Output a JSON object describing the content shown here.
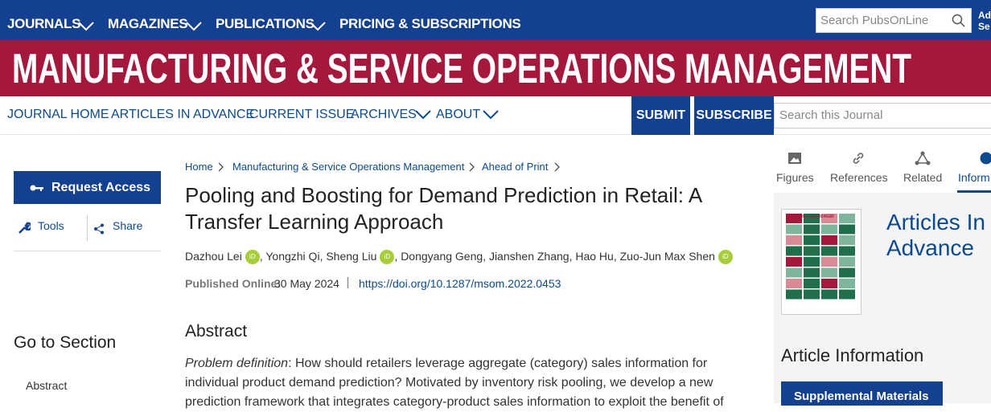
{
  "top_nav": {
    "items": [
      "JOURNALS",
      "MAGAZINES",
      "PUBLICATIONS",
      "PRICING & SUBSCRIPTIONS"
    ],
    "search_placeholder": "Search PubsOnLine",
    "corner_text": [
      "Ad",
      "Se"
    ]
  },
  "banner": {
    "title": "MANUFACTURING & SERVICE OPERATIONS MANAGEMENT"
  },
  "journal_nav": {
    "items": [
      "JOURNAL HOME",
      "ARTICLES IN ADVANCE",
      "CURRENT ISSUE",
      "ARCHIVES",
      "ABOUT"
    ],
    "buttons": [
      "SUBMIT",
      "SUBSCRIBE"
    ],
    "search_placeholder": "Search this Journal"
  },
  "sidebar": {
    "request_access": "Request Access",
    "tools": "Tools",
    "share": "Share",
    "go_to_section": "Go to Section",
    "sections": [
      "Abstract"
    ]
  },
  "article": {
    "breadcrumb": [
      "Home",
      "Manufacturing & Service Operations Management",
      "Ahead of Print"
    ],
    "title": "Pooling and Boosting for Demand Prediction in Retail: A Transfer Learning Approach",
    "authors": [
      {
        "name": "Dazhou Lei",
        "orcid": true
      },
      {
        "name": "Yongzhi Qi",
        "orcid": false
      },
      {
        "name": "Sheng Liu",
        "orcid": true
      },
      {
        "name": "Dongyang Geng",
        "orcid": false
      },
      {
        "name": "Jianshen Zhang",
        "orcid": false
      },
      {
        "name": "Hao Hu",
        "orcid": false
      },
      {
        "name": "Zuo-Jun Max Shen",
        "orcid": true
      }
    ],
    "author_separator": ",",
    "orcid_label": "iD",
    "published_label": "Published Online:",
    "published_date": "30 May 2024",
    "doi": "https://doi.org/10.1287/msom.2022.0453",
    "abstract_heading": "Abstract",
    "abstract_label": "Problem definition",
    "abstract_text": ": How should retailers leverage aggregate (category) sales information for individual product demand prediction? Motivated by inventory risk pooling, we develop a new prediction framework that integrates category-product sales information to exploit the benefit of"
  },
  "right_panel": {
    "tabs": [
      "Figures",
      "References",
      "Related",
      "Inform"
    ],
    "articles_in_advance": "Articles In Advance",
    "article_information": "Article Information",
    "supplemental": "Supplemental Materials"
  }
}
